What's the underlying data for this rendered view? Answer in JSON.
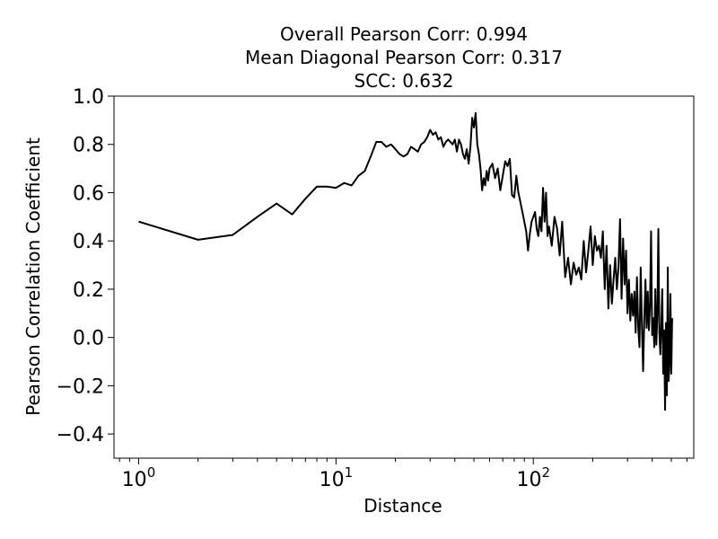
{
  "chart_data": {
    "type": "line",
    "title_lines": [
      "Overall Pearson Corr: 0.994",
      "Mean Diagonal Pearson Corr: 0.317",
      "SCC: 0.632"
    ],
    "xlabel": "Distance",
    "ylabel": "Pearson Correlation Coefficient",
    "xscale": "log",
    "xlim": [
      0.75,
      650
    ],
    "ylim": [
      -0.5,
      1.0
    ],
    "x_ticks": [
      {
        "value": 1,
        "base": "10",
        "exp": "0"
      },
      {
        "value": 10,
        "base": "10",
        "exp": "1"
      },
      {
        "value": 100,
        "base": "10",
        "exp": "2"
      }
    ],
    "y_ticks": [
      {
        "value": -0.4,
        "label": "−0.4"
      },
      {
        "value": -0.2,
        "label": "−0.2"
      },
      {
        "value": 0.0,
        "label": "0.0"
      },
      {
        "value": 0.2,
        "label": "0.2"
      },
      {
        "value": 0.4,
        "label": "0.4"
      },
      {
        "value": 0.6,
        "label": "0.6"
      },
      {
        "value": 0.8,
        "label": "0.8"
      },
      {
        "value": 1.0,
        "label": "1.0"
      }
    ],
    "grid": false,
    "line_color": "#000000",
    "series": [
      {
        "points": [
          [
            1,
            0.48
          ],
          [
            2,
            0.405
          ],
          [
            3,
            0.425
          ],
          [
            4,
            0.5
          ],
          [
            5,
            0.555
          ],
          [
            6,
            0.51
          ],
          [
            7,
            0.575
          ],
          [
            8,
            0.625
          ],
          [
            9,
            0.625
          ],
          [
            10,
            0.62
          ],
          [
            11,
            0.64
          ],
          [
            12,
            0.63
          ],
          [
            13,
            0.67
          ],
          [
            14,
            0.69
          ],
          [
            15,
            0.75
          ],
          [
            16,
            0.81
          ],
          [
            17,
            0.81
          ],
          [
            18,
            0.79
          ],
          [
            19,
            0.8
          ],
          [
            20,
            0.78
          ],
          [
            21,
            0.76
          ],
          [
            22,
            0.75
          ],
          [
            23,
            0.76
          ],
          [
            24,
            0.79
          ],
          [
            25,
            0.78
          ],
          [
            26,
            0.77
          ],
          [
            27,
            0.8
          ],
          [
            28,
            0.81
          ],
          [
            29,
            0.83
          ],
          [
            30,
            0.86
          ],
          [
            31,
            0.84
          ],
          [
            32,
            0.85
          ],
          [
            33,
            0.82
          ],
          [
            34,
            0.83
          ],
          [
            35,
            0.79
          ],
          [
            36,
            0.81
          ],
          [
            37,
            0.82
          ],
          [
            38,
            0.81
          ],
          [
            39,
            0.8
          ],
          [
            40,
            0.82
          ],
          [
            41,
            0.77
          ],
          [
            42,
            0.82
          ],
          [
            43,
            0.8
          ],
          [
            44,
            0.76
          ],
          [
            45,
            0.74
          ],
          [
            46,
            0.78
          ],
          [
            47,
            0.72
          ],
          [
            48,
            0.79
          ],
          [
            49,
            0.91
          ],
          [
            50,
            0.87
          ],
          [
            51,
            0.93
          ],
          [
            52,
            0.8
          ],
          [
            53,
            0.76
          ],
          [
            54,
            0.7
          ],
          [
            55,
            0.61
          ],
          [
            56,
            0.66
          ],
          [
            57,
            0.63
          ],
          [
            58,
            0.69
          ],
          [
            59,
            0.65
          ],
          [
            60,
            0.7
          ],
          [
            62,
            0.72
          ],
          [
            64,
            0.66
          ],
          [
            66,
            0.7
          ],
          [
            68,
            0.61
          ],
          [
            70,
            0.67
          ],
          [
            72,
            0.73
          ],
          [
            74,
            0.71
          ],
          [
            76,
            0.74
          ],
          [
            78,
            0.59
          ],
          [
            80,
            0.58
          ],
          [
            82,
            0.67
          ],
          [
            84,
            0.6
          ],
          [
            86,
            0.56
          ],
          [
            88,
            0.52
          ],
          [
            90,
            0.48
          ],
          [
            92,
            0.44
          ],
          [
            94,
            0.36
          ],
          [
            96,
            0.43
          ],
          [
            98,
            0.48
          ],
          [
            100,
            0.5
          ],
          [
            102,
            0.52
          ],
          [
            104,
            0.45
          ],
          [
            106,
            0.42
          ],
          [
            108,
            0.5
          ],
          [
            110,
            0.44
          ],
          [
            112,
            0.62
          ],
          [
            114,
            0.48
          ],
          [
            116,
            0.6
          ],
          [
            118,
            0.42
          ],
          [
            120,
            0.46
          ],
          [
            124,
            0.38
          ],
          [
            128,
            0.5
          ],
          [
            132,
            0.45
          ],
          [
            136,
            0.34
          ],
          [
            140,
            0.48
          ],
          [
            145,
            0.25
          ],
          [
            150,
            0.33
          ],
          [
            155,
            0.22
          ],
          [
            160,
            0.31
          ],
          [
            165,
            0.26
          ],
          [
            170,
            0.29
          ],
          [
            175,
            0.24
          ],
          [
            180,
            0.4
          ],
          [
            185,
            0.27
          ],
          [
            190,
            0.36
          ],
          [
            195,
            0.46
          ],
          [
            200,
            0.3
          ],
          [
            205,
            0.42
          ],
          [
            210,
            0.36
          ],
          [
            215,
            0.38
          ],
          [
            220,
            0.33
          ],
          [
            225,
            0.44
          ],
          [
            230,
            0.2
          ],
          [
            235,
            0.38
          ],
          [
            240,
            0.12
          ],
          [
            245,
            0.3
          ],
          [
            250,
            0.14
          ],
          [
            255,
            0.24
          ],
          [
            260,
            0.33
          ],
          [
            265,
            0.2
          ],
          [
            270,
            0.29
          ],
          [
            275,
            0.49
          ],
          [
            280,
            0.16
          ],
          [
            285,
            0.41
          ],
          [
            290,
            0.22
          ],
          [
            295,
            0.36
          ],
          [
            300,
            0.1
          ],
          [
            305,
            0.24
          ],
          [
            310,
            0.07
          ],
          [
            315,
            0.18
          ],
          [
            320,
            0.09
          ],
          [
            325,
            0.19
          ],
          [
            330,
            0.02
          ],
          [
            335,
            0.25
          ],
          [
            340,
            0.04
          ],
          [
            345,
            -0.04
          ],
          [
            350,
            0.29
          ],
          [
            355,
            0.05
          ],
          [
            360,
            -0.14
          ],
          [
            365,
            0.08
          ],
          [
            370,
            0.24
          ],
          [
            375,
            0.04
          ],
          [
            380,
            0.19
          ],
          [
            385,
            0.03
          ],
          [
            390,
            0.13
          ],
          [
            395,
            0.44
          ],
          [
            400,
            0.01
          ],
          [
            405,
            0.08
          ],
          [
            410,
            -0.04
          ],
          [
            415,
            0.2
          ],
          [
            420,
            -0.03
          ],
          [
            425,
            0.1
          ],
          [
            430,
            0.45
          ],
          [
            435,
            0.02
          ],
          [
            440,
            -0.07
          ],
          [
            445,
            0.05
          ],
          [
            450,
            0.2
          ],
          [
            455,
            -0.15
          ],
          [
            460,
            0.03
          ],
          [
            465,
            -0.3
          ],
          [
            470,
            0.06
          ],
          [
            475,
            -0.24
          ],
          [
            480,
            0.29
          ],
          [
            485,
            -0.18
          ],
          [
            490,
            -0.1
          ],
          [
            495,
            0.18
          ],
          [
            500,
            -0.15
          ],
          [
            505,
            0.08
          ]
        ]
      }
    ]
  }
}
